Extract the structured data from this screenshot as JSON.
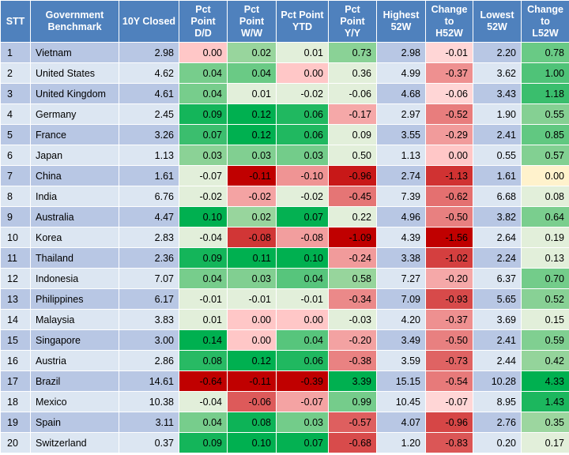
{
  "headers": [
    "STT",
    "Government\nBenchmark",
    "10Y Closed",
    "Pct\nPoint\nD/D",
    "Pct\nPoint\nW/W",
    "Pct Point\nYTD",
    "Pct\nPoint\nY/Y",
    "Highest\n52W",
    "Change\nto\nH52W",
    "Lowest\n52W",
    "Change\nto\nL52W"
  ],
  "rows": [
    [
      "1",
      "Vietnam",
      "2.98",
      "0.00",
      "0.02",
      "0.01",
      "0.73",
      "2.98",
      "-0.01",
      "2.20",
      "0.78"
    ],
    [
      "2",
      "United States",
      "4.62",
      "0.04",
      "0.04",
      "0.00",
      "0.36",
      "4.99",
      "-0.37",
      "3.62",
      "1.00"
    ],
    [
      "3",
      "United Kingdom",
      "4.61",
      "0.04",
      "0.01",
      "-0.02",
      "-0.06",
      "4.68",
      "-0.06",
      "3.43",
      "1.18"
    ],
    [
      "4",
      "Germany",
      "2.45",
      "0.09",
      "0.12",
      "0.06",
      "-0.17",
      "2.97",
      "-0.52",
      "1.90",
      "0.55"
    ],
    [
      "5",
      "France",
      "3.26",
      "0.07",
      "0.12",
      "0.06",
      "0.09",
      "3.55",
      "-0.29",
      "2.41",
      "0.85"
    ],
    [
      "6",
      "Japan",
      "1.13",
      "0.03",
      "0.03",
      "0.03",
      "0.50",
      "1.13",
      "0.00",
      "0.55",
      "0.57"
    ],
    [
      "7",
      "China",
      "1.61",
      "-0.07",
      "-0.11",
      "-0.10",
      "-0.96",
      "2.74",
      "-1.13",
      "1.61",
      "0.00"
    ],
    [
      "8",
      "India",
      "6.76",
      "-0.02",
      "-0.02",
      "-0.02",
      "-0.45",
      "7.39",
      "-0.62",
      "6.68",
      "0.08"
    ],
    [
      "9",
      "Australia",
      "4.47",
      "0.10",
      "0.02",
      "0.07",
      "0.22",
      "4.96",
      "-0.50",
      "3.82",
      "0.64"
    ],
    [
      "10",
      "Korea",
      "2.83",
      "-0.04",
      "-0.08",
      "-0.08",
      "-1.09",
      "4.39",
      "-1.56",
      "2.64",
      "0.19"
    ],
    [
      "11",
      "Thailand",
      "2.36",
      "0.09",
      "0.11",
      "0.10",
      "-0.24",
      "3.38",
      "-1.02",
      "2.24",
      "0.13"
    ],
    [
      "12",
      "Indonesia",
      "7.07",
      "0.04",
      "0.03",
      "0.04",
      "0.58",
      "7.27",
      "-0.20",
      "6.37",
      "0.70"
    ],
    [
      "13",
      "Philippines",
      "6.17",
      "-0.01",
      "-0.01",
      "-0.01",
      "-0.34",
      "7.09",
      "-0.93",
      "5.65",
      "0.52"
    ],
    [
      "14",
      "Malaysia",
      "3.83",
      "0.01",
      "0.00",
      "0.00",
      "-0.03",
      "4.20",
      "-0.37",
      "3.69",
      "0.15"
    ],
    [
      "15",
      "Singapore",
      "3.00",
      "0.14",
      "0.00",
      "0.04",
      "-0.20",
      "3.49",
      "-0.50",
      "2.41",
      "0.59"
    ],
    [
      "16",
      "Austria",
      "2.86",
      "0.08",
      "0.12",
      "0.06",
      "-0.38",
      "3.59",
      "-0.73",
      "2.44",
      "0.42"
    ],
    [
      "17",
      "Brazil",
      "14.61",
      "-0.64",
      "-0.11",
      "-0.39",
      "3.39",
      "15.15",
      "-0.54",
      "10.28",
      "4.33"
    ],
    [
      "18",
      "Mexico",
      "10.38",
      "-0.04",
      "-0.06",
      "-0.07",
      "0.99",
      "10.45",
      "-0.07",
      "8.95",
      "1.43"
    ],
    [
      "19",
      "Spain",
      "3.11",
      "0.04",
      "0.08",
      "0.03",
      "-0.57",
      "4.07",
      "-0.96",
      "2.76",
      "0.35"
    ],
    [
      "20",
      "Switzerland",
      "0.37",
      "0.09",
      "0.10",
      "0.07",
      "-0.68",
      "1.20",
      "-0.83",
      "0.20",
      "0.17"
    ]
  ],
  "colors": {
    "header": "#4f81bd",
    "row_odd": "#b8c7e4",
    "row_even": "#dce6f2",
    "neutral_green": "#e2efda"
  }
}
